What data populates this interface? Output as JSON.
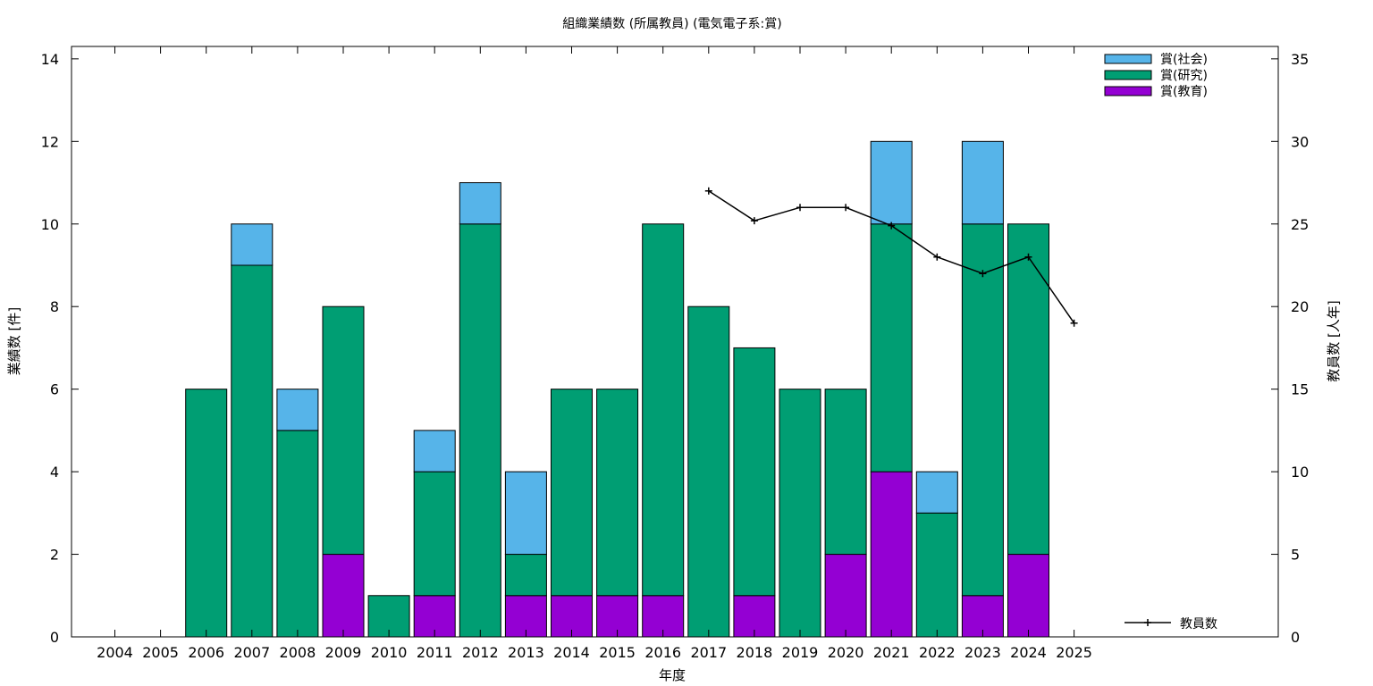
{
  "chart_data": {
    "type": "bar",
    "stacked": true,
    "title": "組織業績数 (所属教員) (電気電子系:賞)",
    "xlabel": "年度",
    "ylabel": "業績数 [件]",
    "y2label": "教員数 [人年]",
    "ylim": [
      0,
      14.3
    ],
    "y2lim": [
      0,
      35.75
    ],
    "yticks": [
      0,
      2,
      4,
      6,
      8,
      10,
      12,
      14
    ],
    "y2ticks": [
      0,
      5,
      10,
      15,
      20,
      25,
      30,
      35
    ],
    "categories": [
      "2004",
      "2005",
      "2006",
      "2007",
      "2008",
      "2009",
      "2010",
      "2011",
      "2012",
      "2013",
      "2014",
      "2015",
      "2016",
      "2017",
      "2018",
      "2019",
      "2020",
      "2021",
      "2022",
      "2023",
      "2024",
      "2025"
    ],
    "series": [
      {
        "name": "賞(教育)",
        "color": "#9400d3",
        "values": [
          0,
          0,
          0,
          0,
          0,
          2,
          0,
          1,
          0,
          1,
          1,
          1,
          1,
          0,
          1,
          0,
          2,
          4,
          0,
          1,
          2,
          0
        ]
      },
      {
        "name": "賞(研究)",
        "color": "#009e73",
        "values": [
          0,
          0,
          6,
          9,
          5,
          6,
          1,
          3,
          10,
          1,
          5,
          5,
          9,
          8,
          6,
          6,
          4,
          6,
          3,
          9,
          8,
          0
        ]
      },
      {
        "name": "賞(社会)",
        "color": "#56b4e9",
        "values": [
          0,
          0,
          0,
          1,
          1,
          0,
          0,
          1,
          1,
          2,
          0,
          0,
          0,
          0,
          0,
          0,
          0,
          2,
          1,
          2,
          0,
          0
        ]
      }
    ],
    "line_series": {
      "name": "教員数",
      "axis": "y2",
      "color": "#000000",
      "x": [
        "2017",
        "2018",
        "2019",
        "2020",
        "2021",
        "2022",
        "2023",
        "2024",
        "2025"
      ],
      "values": [
        27,
        25.2,
        26,
        26,
        24.9,
        23,
        22,
        23,
        19
      ]
    },
    "legend_position": "top-right",
    "grid": false
  }
}
